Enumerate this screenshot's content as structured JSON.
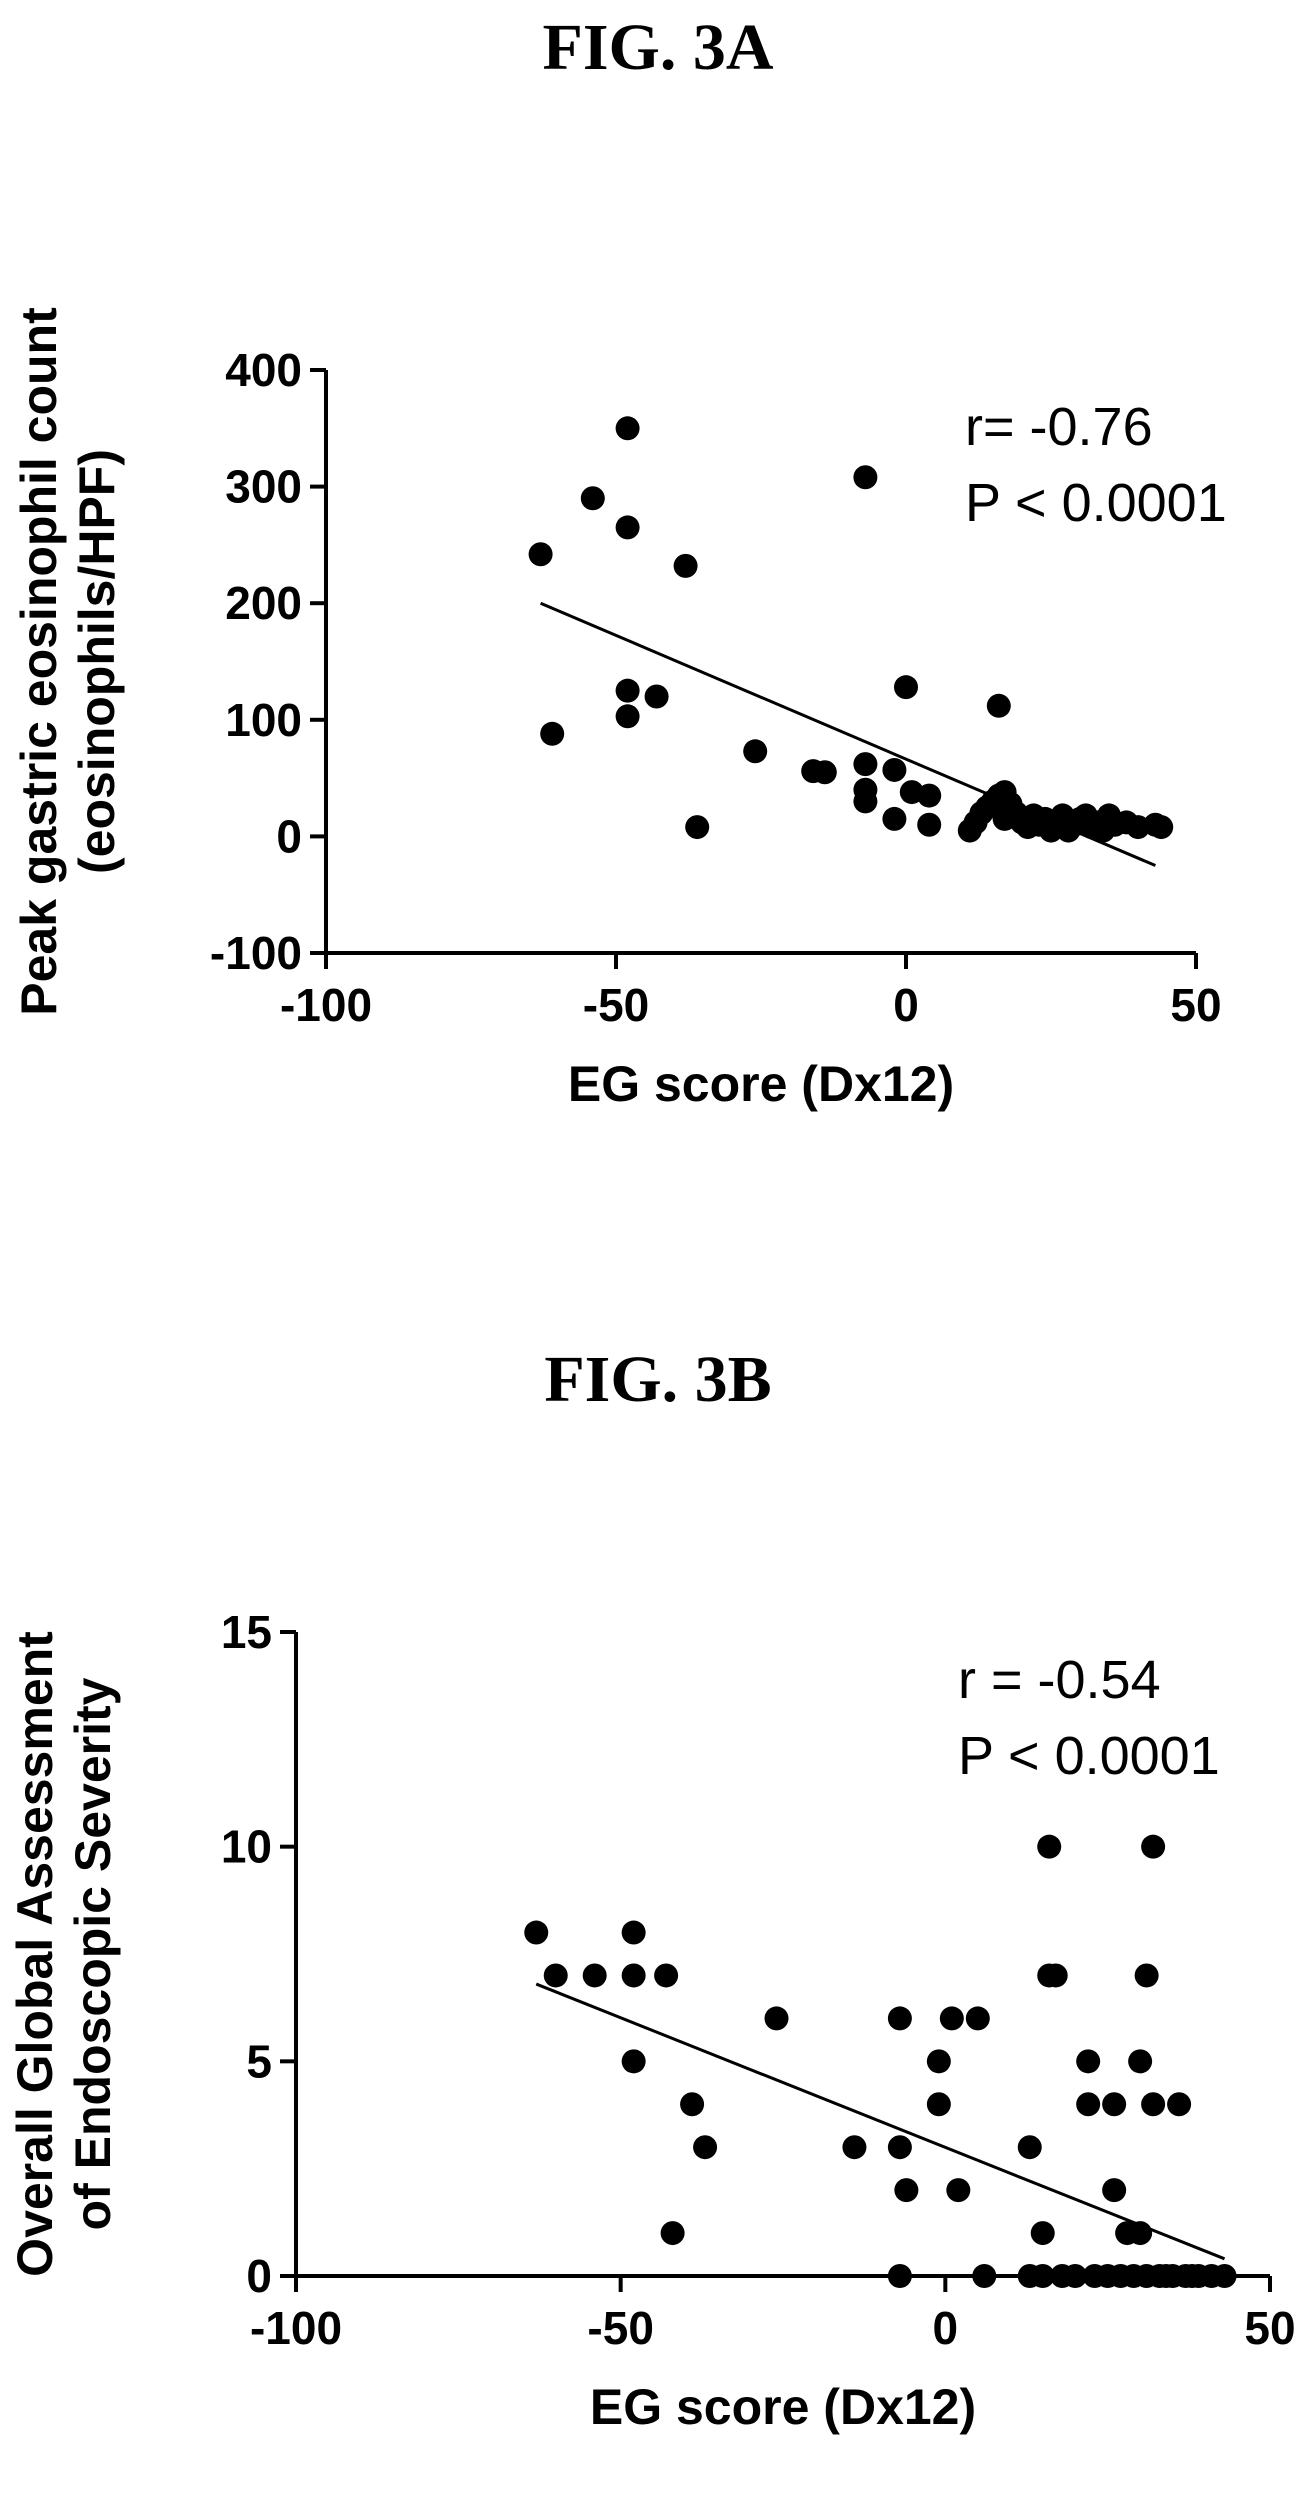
{
  "figures": [
    {
      "label": "FIG. 3A"
    },
    {
      "label": "FIG. 3B"
    }
  ],
  "chart_data": [
    {
      "type": "scatter",
      "title": "FIG. 3A",
      "xlabel": "EG score (Dx12)",
      "ylabel_lines": [
        "Peak gastric eosinophil count",
        "(eosinophils/HPF)"
      ],
      "xlim": [
        -100,
        50
      ],
      "ylim": [
        -100,
        400
      ],
      "xticks": [
        -100,
        -50,
        0,
        50
      ],
      "yticks": [
        -100,
        0,
        100,
        200,
        300,
        400
      ],
      "annotation": [
        "r= -0.76",
        "P < 0.0001"
      ],
      "fit_line": {
        "x": [
          -63,
          43
        ],
        "y": [
          200,
          -25
        ]
      },
      "points": [
        [
          -63,
          242
        ],
        [
          -61,
          88
        ],
        [
          -54,
          290
        ],
        [
          -48,
          350
        ],
        [
          -48,
          265
        ],
        [
          -48,
          125
        ],
        [
          -48,
          103
        ],
        [
          -43,
          120
        ],
        [
          -38,
          232
        ],
        [
          -36,
          8
        ],
        [
          -26,
          73
        ],
        [
          -16,
          56
        ],
        [
          -14,
          55
        ],
        [
          -7,
          308
        ],
        [
          -7,
          62
        ],
        [
          -7,
          40
        ],
        [
          -7,
          30
        ],
        [
          -2,
          57
        ],
        [
          -2,
          15
        ],
        [
          0,
          128
        ],
        [
          1,
          38
        ],
        [
          4,
          35
        ],
        [
          4,
          10
        ],
        [
          11,
          5
        ],
        [
          12,
          12
        ],
        [
          13,
          20
        ],
        [
          14,
          25
        ],
        [
          15,
          30
        ],
        [
          16,
          112
        ],
        [
          16,
          35
        ],
        [
          17,
          38
        ],
        [
          17,
          15
        ],
        [
          18,
          28
        ],
        [
          19,
          20
        ],
        [
          20,
          12
        ],
        [
          21,
          8
        ],
        [
          22,
          18
        ],
        [
          23,
          10
        ],
        [
          24,
          15
        ],
        [
          25,
          5
        ],
        [
          26,
          12
        ],
        [
          27,
          18
        ],
        [
          28,
          5
        ],
        [
          29,
          10
        ],
        [
          30,
          15
        ],
        [
          31,
          18
        ],
        [
          32,
          8
        ],
        [
          33,
          12
        ],
        [
          34,
          5
        ],
        [
          35,
          18
        ],
        [
          36,
          10
        ],
        [
          38,
          12
        ],
        [
          40,
          8
        ],
        [
          43,
          10
        ],
        [
          44,
          8
        ]
      ]
    },
    {
      "type": "scatter",
      "title": "FIG. 3B",
      "xlabel": "EG score (Dx12)",
      "ylabel_lines": [
        "Overall Global Assessment",
        "of Endoscopic Severity"
      ],
      "xlim": [
        -100,
        50
      ],
      "ylim": [
        0,
        15
      ],
      "xticks": [
        -100,
        -50,
        0,
        50
      ],
      "yticks": [
        0,
        5,
        10,
        15
      ],
      "annotation": [
        "r = -0.54",
        "P < 0.0001"
      ],
      "fit_line": {
        "x": [
          -63,
          43
        ],
        "y": [
          6.8,
          0.4
        ]
      },
      "points": [
        [
          -63,
          8
        ],
        [
          -60,
          7
        ],
        [
          -54,
          7
        ],
        [
          -48,
          8
        ],
        [
          -48,
          7
        ],
        [
          -48,
          5
        ],
        [
          -43,
          7
        ],
        [
          -42,
          1
        ],
        [
          -39,
          4
        ],
        [
          -37,
          3
        ],
        [
          -26,
          6
        ],
        [
          -14,
          3
        ],
        [
          -7,
          6
        ],
        [
          -7,
          3
        ],
        [
          -7,
          0
        ],
        [
          -6,
          2
        ],
        [
          -1,
          5
        ],
        [
          -1,
          4
        ],
        [
          1,
          6
        ],
        [
          2,
          2
        ],
        [
          5,
          6
        ],
        [
          6,
          0
        ],
        [
          13,
          3
        ],
        [
          13,
          0
        ],
        [
          15,
          1
        ],
        [
          15,
          0
        ],
        [
          16,
          10
        ],
        [
          16,
          7
        ],
        [
          17,
          7
        ],
        [
          18,
          0
        ],
        [
          20,
          0
        ],
        [
          22,
          5
        ],
        [
          22,
          4
        ],
        [
          23,
          0
        ],
        [
          25,
          0
        ],
        [
          26,
          4
        ],
        [
          26,
          2
        ],
        [
          27,
          0
        ],
        [
          28,
          1
        ],
        [
          29,
          0
        ],
        [
          30,
          5
        ],
        [
          30,
          1
        ],
        [
          31,
          0
        ],
        [
          31,
          7
        ],
        [
          32,
          4
        ],
        [
          32,
          10
        ],
        [
          33,
          0
        ],
        [
          34,
          0
        ],
        [
          35,
          0
        ],
        [
          36,
          4
        ],
        [
          37,
          0
        ],
        [
          38,
          0
        ],
        [
          39,
          0
        ],
        [
          41,
          0
        ],
        [
          43,
          0
        ]
      ]
    }
  ]
}
